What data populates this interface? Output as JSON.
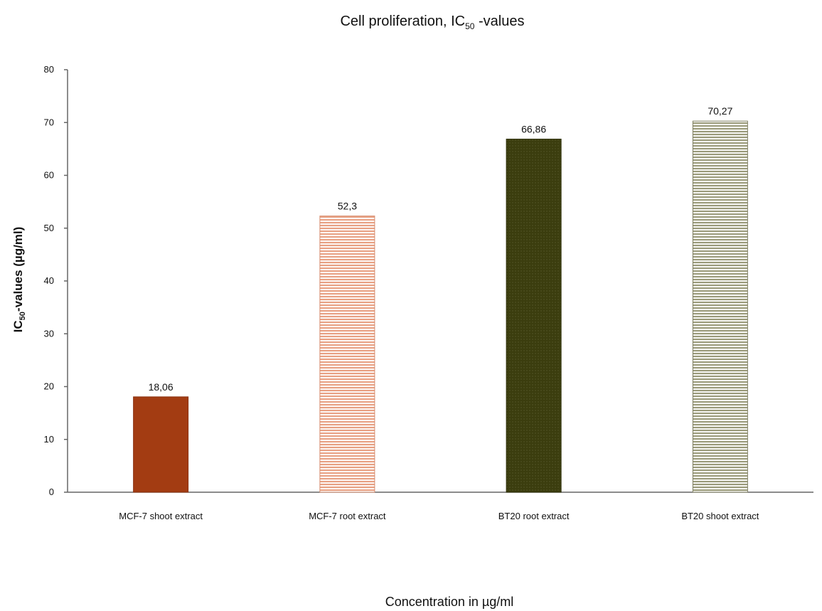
{
  "chart_data": {
    "type": "bar",
    "title_main": "Cell proliferation, IC",
    "title_sub": "50",
    "title_suffix": " -values",
    "ylabel_main": "IC",
    "ylabel_sub": "50",
    "ylabel_suffix": "-values (µg/ml)",
    "xlabel": "Concentration in µg/ml",
    "categories": [
      "MCF-7 shoot extract",
      "MCF-7 root extract",
      "BT20 root extract",
      "BT20 shoot extract"
    ],
    "values": [
      18.06,
      52.3,
      66.86,
      70.27
    ],
    "value_labels": [
      "18,06",
      "52,3",
      "66,86",
      "70,27"
    ],
    "ylim": [
      0,
      80
    ],
    "yticks": [
      "0",
      "10",
      "20",
      "30",
      "40",
      "50",
      "60",
      "70",
      "80"
    ],
    "grid": false,
    "bar_styles": [
      {
        "fill": "#a33c12",
        "pattern": "solid"
      },
      {
        "fill": "#e8a184",
        "stripe": "#ffffff",
        "pattern": "horizontal-stripes"
      },
      {
        "fill": "#3b3d0e",
        "stripe": "#555a1c",
        "pattern": "dark-hatch"
      },
      {
        "fill": "#9b9b7b",
        "stripe": "#ffffff",
        "pattern": "horizontal-stripes"
      }
    ]
  }
}
